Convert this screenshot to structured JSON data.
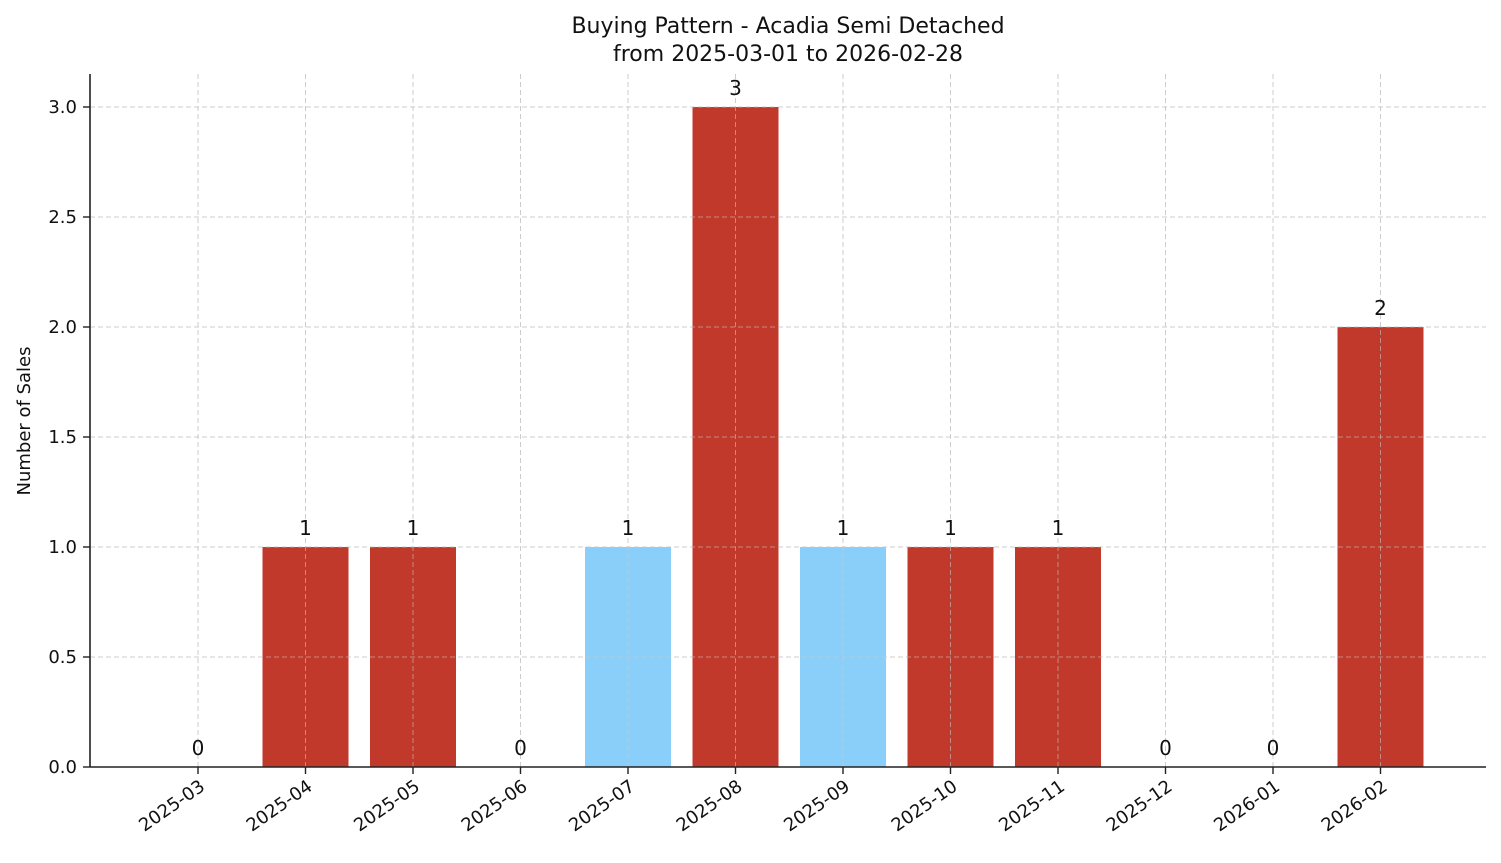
{
  "chart_data": {
    "type": "bar",
    "title": "Buying Pattern - Acadia Semi Detached",
    "subtitle": "from 2025-03-01 to 2026-02-28",
    "xlabel": "",
    "ylabel": "Number of Sales",
    "categories": [
      "2025-03",
      "2025-04",
      "2025-05",
      "2025-06",
      "2025-07",
      "2025-08",
      "2025-09",
      "2025-10",
      "2025-11",
      "2025-12",
      "2026-01",
      "2026-02"
    ],
    "values": [
      0,
      1,
      1,
      0,
      1,
      3,
      1,
      1,
      1,
      0,
      0,
      2
    ],
    "bar_colors": [
      "#c0392b",
      "#c0392b",
      "#c0392b",
      "#c0392b",
      "#89cff9",
      "#c0392b",
      "#89cff9",
      "#c0392b",
      "#c0392b",
      "#c0392b",
      "#c0392b",
      "#c0392b"
    ],
    "value_labels": [
      "0",
      "1",
      "1",
      "0",
      "1",
      "3",
      "1",
      "1",
      "1",
      "0",
      "0",
      "2"
    ],
    "ylim": [
      0,
      3.15
    ],
    "yticks": [
      0.0,
      0.5,
      1.0,
      1.5,
      2.0,
      2.5,
      3.0
    ],
    "ytick_labels": [
      "0.0",
      "0.5",
      "1.0",
      "1.5",
      "2.0",
      "2.5",
      "3.0"
    ],
    "grid": true,
    "legend": null,
    "colors": {
      "primary": "#c0392b",
      "highlight": "#89cff9"
    }
  }
}
